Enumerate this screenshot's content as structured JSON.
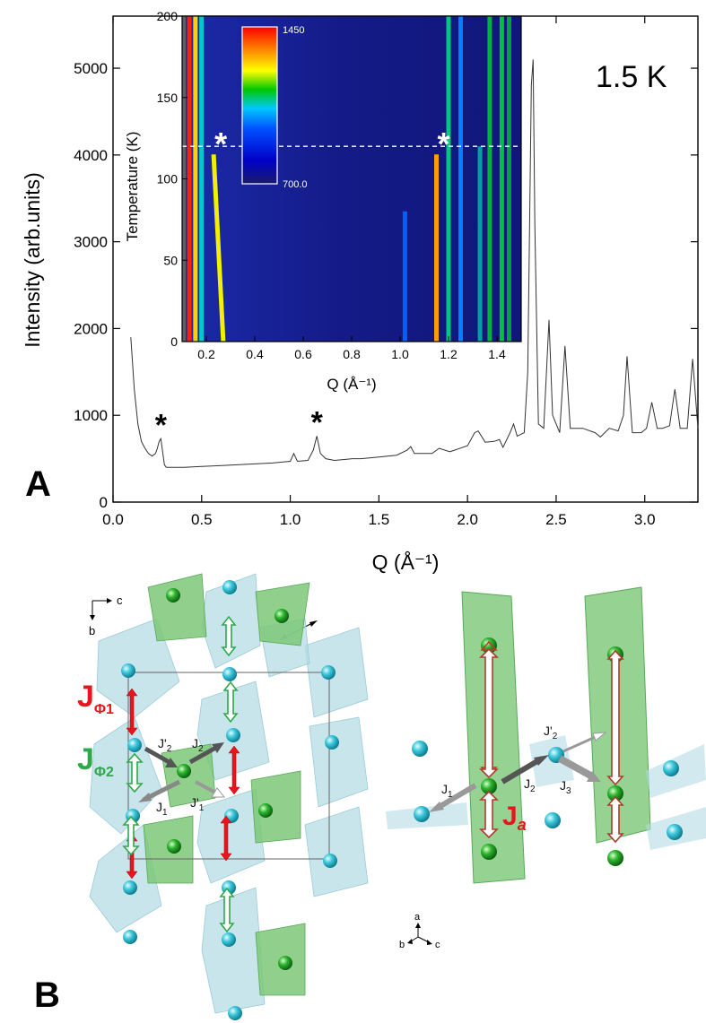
{
  "panel_a": {
    "letter": "A",
    "annotation": "1.5 K",
    "peak_marker": "*",
    "chart_data": {
      "type": "line",
      "xlabel": "Q (Å⁻¹)",
      "ylabel": "Intensity (arb.units)",
      "xlim": [
        0.0,
        3.3
      ],
      "ylim": [
        0,
        5600
      ],
      "x_ticks": [
        "0.0",
        "0.5",
        "1.0",
        "1.5",
        "2.0",
        "2.5",
        "3.0"
      ],
      "y_ticks": [
        "0",
        "1000",
        "2000",
        "3000",
        "4000",
        "5000"
      ],
      "marked_peaks_Q": [
        0.27,
        1.15
      ],
      "x": [
        0.1,
        0.12,
        0.14,
        0.16,
        0.18,
        0.2,
        0.22,
        0.24,
        0.25,
        0.26,
        0.27,
        0.28,
        0.29,
        0.3,
        0.35,
        0.4,
        0.5,
        0.6,
        0.7,
        0.8,
        0.9,
        1.0,
        1.02,
        1.04,
        1.1,
        1.13,
        1.15,
        1.17,
        1.2,
        1.25,
        1.3,
        1.35,
        1.4,
        1.5,
        1.6,
        1.66,
        1.68,
        1.7,
        1.8,
        1.84,
        1.9,
        2.0,
        2.04,
        2.06,
        2.1,
        2.15,
        2.18,
        2.2,
        2.24,
        2.26,
        2.28,
        2.32,
        2.34,
        2.36,
        2.37,
        2.38,
        2.4,
        2.43,
        2.46,
        2.48,
        2.52,
        2.55,
        2.58,
        2.65,
        2.72,
        2.75,
        2.8,
        2.85,
        2.88,
        2.9,
        2.93,
        2.98,
        3.01,
        3.04,
        3.07,
        3.1,
        3.14,
        3.17,
        3.2,
        3.24,
        3.27,
        3.3
      ],
      "values": [
        1900,
        1300,
        900,
        700,
        620,
        560,
        530,
        560,
        620,
        700,
        730,
        580,
        430,
        400,
        400,
        400,
        410,
        420,
        430,
        440,
        450,
        470,
        560,
        470,
        480,
        600,
        760,
        560,
        500,
        480,
        490,
        500,
        500,
        520,
        540,
        600,
        640,
        560,
        560,
        620,
        580,
        650,
        800,
        820,
        690,
        700,
        720,
        630,
        800,
        900,
        760,
        800,
        1500,
        4800,
        5100,
        3200,
        900,
        850,
        2100,
        1000,
        800,
        1800,
        850,
        850,
        800,
        750,
        850,
        820,
        1000,
        1680,
        800,
        800,
        850,
        1150,
        850,
        850,
        880,
        1300,
        850,
        850,
        1650,
        850
      ]
    },
    "inset": {
      "chart_data": {
        "type": "heatmap",
        "xlabel": "Q (Å⁻¹)",
        "ylabel": "Temperature (K)",
        "xlim": [
          0.1,
          1.5
        ],
        "ylim": [
          0,
          200
        ],
        "x_ticks": [
          "0.2",
          "0.4",
          "0.6",
          "0.8",
          "1.0",
          "1.2",
          "1.4"
        ],
        "y_ticks": [
          "0",
          "50",
          "100",
          "150",
          "200"
        ],
        "colorbar_min_label": "700.0",
        "colorbar_max_label": "1450",
        "dashed_line_T": 120,
        "marked_Q": [
          0.23,
          1.15
        ],
        "colormap": [
          "#1a1a6e",
          "#0000c8",
          "#0050ff",
          "#00c8ff",
          "#00c800",
          "#ffff00",
          "#ff8000",
          "#ff0000"
        ],
        "background_color": "#15188c",
        "features": [
          {
            "kind": "edge",
            "q_start": 0.1,
            "q_end": 0.115,
            "t_start": 0,
            "t_end": 200,
            "color": "#606060"
          },
          {
            "kind": "line",
            "q_start": 0.13,
            "q_end": 0.13,
            "t_start": 0,
            "t_end": 200,
            "color": "#ff2000"
          },
          {
            "kind": "line",
            "q_start": 0.155,
            "q_end": 0.155,
            "t_start": 0,
            "t_end": 200,
            "color": "#ffd000"
          },
          {
            "kind": "line",
            "q_start": 0.18,
            "q_end": 0.18,
            "t_start": 0,
            "t_end": 200,
            "color": "#00c8c8"
          },
          {
            "kind": "line",
            "q_start": 0.27,
            "q_end": 0.23,
            "t_start": 0,
            "t_end": 115,
            "color": "#f0f000"
          },
          {
            "kind": "line",
            "q_start": 1.15,
            "q_end": 1.15,
            "t_start": 0,
            "t_end": 115,
            "color": "#ffa000"
          },
          {
            "kind": "line",
            "q_start": 1.2,
            "q_end": 1.2,
            "t_start": 0,
            "t_end": 200,
            "color": "#00c880"
          },
          {
            "kind": "line",
            "q_start": 1.25,
            "q_end": 1.25,
            "t_start": 0,
            "t_end": 200,
            "color": "#0080ff"
          },
          {
            "kind": "line",
            "q_start": 1.33,
            "q_end": 1.33,
            "t_start": 0,
            "t_end": 120,
            "color": "#00a0a0"
          },
          {
            "kind": "line",
            "q_start": 1.37,
            "q_end": 1.37,
            "t_start": 0,
            "t_end": 200,
            "color": "#00b040"
          },
          {
            "kind": "line",
            "q_start": 1.42,
            "q_end": 1.42,
            "t_start": 0,
            "t_end": 200,
            "color": "#00c040"
          },
          {
            "kind": "line",
            "q_start": 1.45,
            "q_end": 1.45,
            "t_start": 0,
            "t_end": 200,
            "color": "#00a040"
          },
          {
            "kind": "line",
            "q_start": 1.02,
            "q_end": 1.02,
            "t_start": 0,
            "t_end": 80,
            "color": "#0060ff"
          }
        ]
      }
    }
  },
  "panel_b": {
    "letter": "B",
    "axes_left": {
      "c": "c",
      "b": "b"
    },
    "axes_right": {
      "a": "a",
      "b": "b",
      "c": "c"
    },
    "labels_left": [
      {
        "main": "J",
        "sub": "Φ1",
        "color": "#e8141e"
      },
      {
        "main": "J",
        "sub": "Φ2",
        "color": "#2ea84a"
      },
      {
        "main": "J'",
        "sub": "2"
      },
      {
        "main": "J",
        "sub": "2"
      },
      {
        "main": "J",
        "sub": "1"
      },
      {
        "main": "J'",
        "sub": "1"
      }
    ],
    "labels_right": [
      {
        "main": "J'",
        "sub": "2"
      },
      {
        "main": "J",
        "sub": "1"
      },
      {
        "main": "J",
        "sub": "2"
      },
      {
        "main": "J",
        "sub": "3"
      },
      {
        "main": "J",
        "sub": "a",
        "color": "#e8141e"
      }
    ],
    "colors": {
      "cyan_atom": "#3ec8dc",
      "green_atom": "#2fb52f",
      "polyhedron_cyan": "#b4dce4",
      "polyhedron_green": "#7cc878",
      "arrow_red": "#e8141e",
      "arrow_green_outline": "#2ea84a",
      "arrow_dark": "#555555"
    }
  }
}
